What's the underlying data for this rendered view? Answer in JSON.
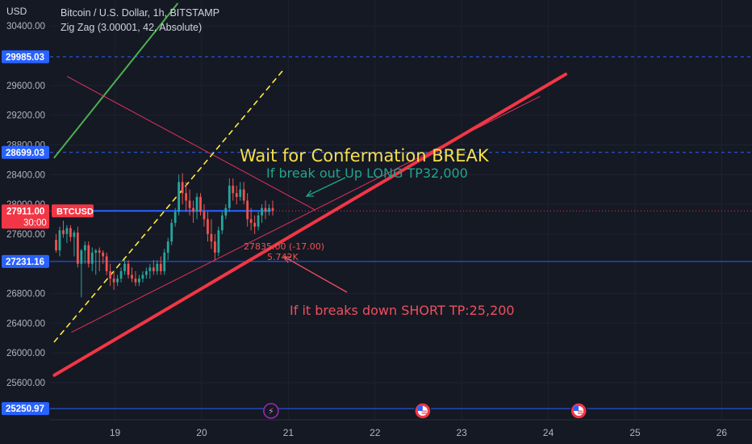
{
  "header": {
    "currency": "USD",
    "symbol_title": "Bitcoin / U.S. Dollar, 1h, BITSTAMP",
    "indicator": "Zig Zag (3.00001, 42, Absolute)"
  },
  "colors": {
    "background": "#151924",
    "up_candle": "#26a69a",
    "down_candle": "#ef5350",
    "label_blue": "#2962ff",
    "label_red": "#f23645",
    "support_line": "#f23645",
    "triangle_line": "#e0315f",
    "dashed_line": "#ffeb3b",
    "zigzag_line": "#4caf50",
    "note_yellow": "#f7e04a",
    "note_teal": "#22a58a",
    "note_red": "#ef4f5d"
  },
  "chart_data": {
    "type": "candlestick",
    "title": "Bitcoin / U.S. Dollar, 1h, BITSTAMP",
    "y_ticks": [
      "30400.00",
      "29600.00",
      "29200.00",
      "28800.00",
      "28400.00",
      "28000.00",
      "27600.00",
      "26800.00",
      "26400.00",
      "26000.00",
      "25600.00"
    ],
    "x_ticks": [
      "19",
      "20",
      "21",
      "22",
      "23",
      "24",
      "25",
      "26"
    ],
    "ylim": [
      25100,
      30750
    ],
    "xlim": [
      18.25,
      26.35
    ],
    "price_labels": [
      {
        "name": "level-29985",
        "value": 29985.03,
        "text": "29985.03",
        "color": "blue",
        "line": "dashed"
      },
      {
        "name": "level-28699",
        "value": 28699.03,
        "text": "28699.03",
        "color": "blue",
        "line": "dashed"
      },
      {
        "name": "level-27231",
        "value": 27231.16,
        "text": "27231.16",
        "color": "blue",
        "line": "solid"
      },
      {
        "name": "level-25250",
        "value": 25250.97,
        "text": "25250.97",
        "color": "blue",
        "line": "solid"
      }
    ],
    "current_price": {
      "value": 27911.0,
      "text": "27911.00",
      "countdown": "30:00",
      "symbol_tag": "BTCUSD"
    },
    "candles": [
      {
        "o": 27520,
        "h": 27600,
        "l": 27350,
        "c": 27380
      },
      {
        "o": 27380,
        "h": 27700,
        "l": 27300,
        "c": 27650
      },
      {
        "o": 27650,
        "h": 27780,
        "l": 27550,
        "c": 27600
      },
      {
        "o": 27600,
        "h": 27720,
        "l": 27480,
        "c": 27680
      },
      {
        "o": 27680,
        "h": 27720,
        "l": 27500,
        "c": 27560
      },
      {
        "o": 27560,
        "h": 27650,
        "l": 27300,
        "c": 27620
      },
      {
        "o": 27620,
        "h": 27700,
        "l": 27150,
        "c": 27200
      },
      {
        "o": 27200,
        "h": 27400,
        "l": 26750,
        "c": 27380
      },
      {
        "o": 27380,
        "h": 27500,
        "l": 27200,
        "c": 27450
      },
      {
        "o": 27450,
        "h": 27500,
        "l": 27150,
        "c": 27200
      },
      {
        "o": 27200,
        "h": 27420,
        "l": 27100,
        "c": 27350
      },
      {
        "o": 27350,
        "h": 27400,
        "l": 27050,
        "c": 27380
      },
      {
        "o": 27380,
        "h": 27420,
        "l": 27100,
        "c": 27350
      },
      {
        "o": 27350,
        "h": 27380,
        "l": 27200,
        "c": 27300
      },
      {
        "o": 27300,
        "h": 27350,
        "l": 27050,
        "c": 27100
      },
      {
        "o": 27100,
        "h": 27200,
        "l": 26900,
        "c": 27000
      },
      {
        "o": 27000,
        "h": 27100,
        "l": 26850,
        "c": 26950
      },
      {
        "o": 26950,
        "h": 27050,
        "l": 26900,
        "c": 27000
      },
      {
        "o": 27000,
        "h": 27150,
        "l": 26950,
        "c": 27100
      },
      {
        "o": 27100,
        "h": 27250,
        "l": 27050,
        "c": 27200
      },
      {
        "o": 27200,
        "h": 27250,
        "l": 27000,
        "c": 27050
      },
      {
        "o": 27050,
        "h": 27150,
        "l": 26950,
        "c": 27000
      },
      {
        "o": 27000,
        "h": 27100,
        "l": 26900,
        "c": 26950
      },
      {
        "o": 26950,
        "h": 27050,
        "l": 26900,
        "c": 27000
      },
      {
        "o": 27000,
        "h": 27100,
        "l": 26950,
        "c": 27050
      },
      {
        "o": 27050,
        "h": 27150,
        "l": 27000,
        "c": 27100
      },
      {
        "o": 27100,
        "h": 27200,
        "l": 27000,
        "c": 27150
      },
      {
        "o": 27150,
        "h": 27250,
        "l": 27050,
        "c": 27100
      },
      {
        "o": 27100,
        "h": 27250,
        "l": 27050,
        "c": 27200
      },
      {
        "o": 27200,
        "h": 27300,
        "l": 27050,
        "c": 27100
      },
      {
        "o": 27100,
        "h": 27400,
        "l": 27050,
        "c": 27350
      },
      {
        "o": 27350,
        "h": 27550,
        "l": 27250,
        "c": 27500
      },
      {
        "o": 27500,
        "h": 27800,
        "l": 27450,
        "c": 27750
      },
      {
        "o": 27750,
        "h": 27950,
        "l": 27700,
        "c": 27900
      },
      {
        "o": 27900,
        "h": 28400,
        "l": 27850,
        "c": 28300
      },
      {
        "o": 28300,
        "h": 28420,
        "l": 28000,
        "c": 28150
      },
      {
        "o": 28150,
        "h": 28300,
        "l": 27900,
        "c": 28050
      },
      {
        "o": 28050,
        "h": 28200,
        "l": 27850,
        "c": 27950
      },
      {
        "o": 27950,
        "h": 28050,
        "l": 27750,
        "c": 27900
      },
      {
        "o": 27900,
        "h": 28150,
        "l": 27800,
        "c": 28100
      },
      {
        "o": 28100,
        "h": 28150,
        "l": 27850,
        "c": 27900
      },
      {
        "o": 27900,
        "h": 28000,
        "l": 27700,
        "c": 27800
      },
      {
        "o": 27800,
        "h": 27900,
        "l": 27500,
        "c": 27600
      },
      {
        "o": 27600,
        "h": 27800,
        "l": 27400,
        "c": 27500
      },
      {
        "o": 27500,
        "h": 27600,
        "l": 27250,
        "c": 27350
      },
      {
        "o": 27350,
        "h": 27700,
        "l": 27300,
        "c": 27650
      },
      {
        "o": 27650,
        "h": 27900,
        "l": 27600,
        "c": 27850
      },
      {
        "o": 27850,
        "h": 28000,
        "l": 27800,
        "c": 27950
      },
      {
        "o": 27950,
        "h": 28350,
        "l": 27900,
        "c": 28250
      },
      {
        "o": 28250,
        "h": 28350,
        "l": 28050,
        "c": 28150
      },
      {
        "o": 28150,
        "h": 28250,
        "l": 28000,
        "c": 28100
      },
      {
        "o": 28100,
        "h": 28300,
        "l": 28050,
        "c": 28200
      },
      {
        "o": 28200,
        "h": 28300,
        "l": 28000,
        "c": 28050
      },
      {
        "o": 28050,
        "h": 28150,
        "l": 27700,
        "c": 27800
      },
      {
        "o": 27800,
        "h": 27950,
        "l": 27650,
        "c": 27750
      },
      {
        "o": 27750,
        "h": 27850,
        "l": 27600,
        "c": 27700
      },
      {
        "o": 27700,
        "h": 27900,
        "l": 27650,
        "c": 27850
      },
      {
        "o": 27850,
        "h": 28000,
        "l": 27750,
        "c": 27950
      },
      {
        "o": 27950,
        "h": 28050,
        "l": 27800,
        "c": 27900
      },
      {
        "o": 27900,
        "h": 28000,
        "l": 27850,
        "c": 27950
      },
      {
        "o": 27950,
        "h": 28050,
        "l": 27850,
        "c": 27911
      }
    ],
    "candle_time_start": 18.32,
    "candle_time_step": 0.04166,
    "drawings": {
      "support_line": {
        "from": [
          18.3,
          25700
        ],
        "to": [
          24.2,
          29750
        ]
      },
      "triangle_upper": {
        "from": [
          18.45,
          29720
        ],
        "to": [
          21.3,
          27930
        ]
      },
      "triangle_lower": {
        "from": [
          18.5,
          26280
        ],
        "to": [
          23.9,
          29450
        ]
      },
      "dashed_trend": {
        "from": [
          18.3,
          26150
        ],
        "to": [
          20.95,
          29820
        ]
      },
      "zigzag_leg": {
        "from": [
          18.3,
          28630
        ],
        "to": [
          19.72,
          30700
        ]
      },
      "blue_horizontal": {
        "value": 27911,
        "from": 18.3,
        "to": 20.8
      },
      "current_dotted": {
        "value": 27911
      }
    },
    "annotations": {
      "main_note": "Wait for Confermation BREAK",
      "long_note": "If break out Up LONG TP32,000",
      "short_note": "If it breaks down SHORT TP:25,200",
      "pivot_price": "27835.00 (-17.00)",
      "pivot_volume": "5.742K"
    },
    "event_icons": [
      {
        "name": "earnings-lightning",
        "x": 20.8,
        "glyph": "⚡"
      },
      {
        "name": "us-economic-event-1",
        "x": 22.55,
        "glyph": "≡"
      },
      {
        "name": "us-economic-event-2",
        "x": 24.35,
        "glyph": "≡"
      }
    ]
  }
}
